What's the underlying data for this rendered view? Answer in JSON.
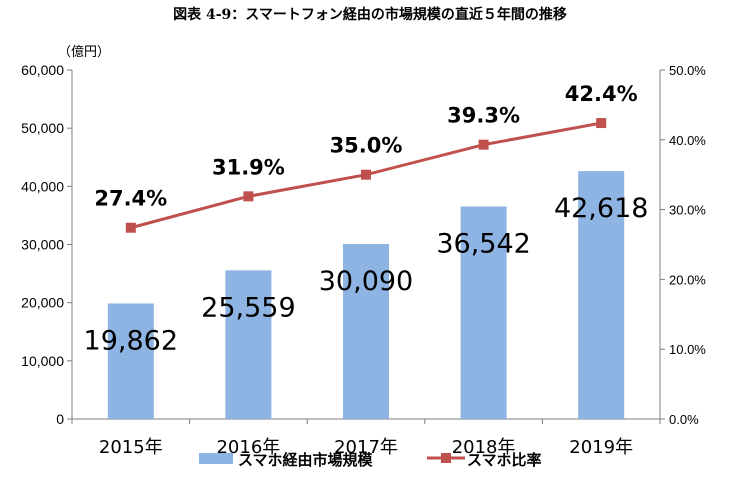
{
  "chart_data": {
    "type": "bar+line",
    "title": "図表 4-9：スマートフォン経由の市場規模の直近５年間の推移",
    "ylabel_left": "（億円）",
    "categories": [
      "2015年",
      "2016年",
      "2017年",
      "2018年",
      "2019年"
    ],
    "series": [
      {
        "name": "スマホ経由市場規模",
        "kind": "bar",
        "axis": "left",
        "color": "#8EB4E3",
        "values": [
          19862,
          25559,
          30090,
          36542,
          42618
        ],
        "value_labels": [
          "19,862",
          "25,559",
          "30,090",
          "36,542",
          "42,618"
        ]
      },
      {
        "name": "スマホ比率",
        "kind": "line",
        "axis": "right",
        "color": "#C0504D",
        "values": [
          27.4,
          31.9,
          35.0,
          39.3,
          42.4
        ],
        "value_labels": [
          "27.4%",
          "31.9%",
          "35.0%",
          "39.3%",
          "42.4%"
        ]
      }
    ],
    "ylim_left": [
      0,
      60000
    ],
    "yticks_left": [
      "0",
      "10,000",
      "20,000",
      "30,000",
      "40,000",
      "50,000",
      "60,000"
    ],
    "ylim_right": [
      0,
      50
    ],
    "yticks_right": [
      "0.0%",
      "10.0%",
      "20.0%",
      "30.0%",
      "40.0%",
      "50.0%"
    ],
    "grid": false,
    "legend_position": "bottom"
  }
}
